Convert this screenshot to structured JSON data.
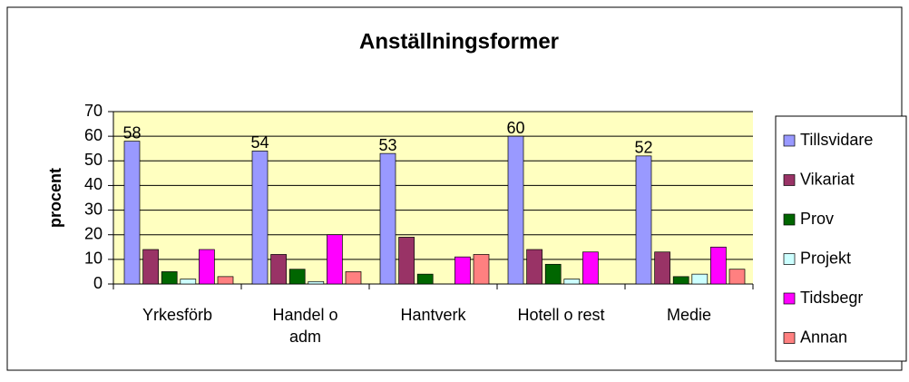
{
  "chart_data": {
    "type": "bar",
    "title": "Anställningsformer",
    "y_label": "procent",
    "categories": [
      "Yrkesförb",
      "Handel o adm",
      "Hantverk",
      "Hotell o rest",
      "Medie"
    ],
    "series": [
      {
        "name": "Tillsvidare",
        "color": "#9999ff",
        "values": [
          58,
          54,
          53,
          60,
          52
        ],
        "data_labels": true
      },
      {
        "name": "Vikariat",
        "color": "#993366",
        "values": [
          14,
          12,
          19,
          14,
          13
        ]
      },
      {
        "name": "Prov",
        "color": "#006600",
        "values": [
          5,
          6,
          4,
          8,
          3
        ]
      },
      {
        "name": "Projekt",
        "color": "#ccffff",
        "values": [
          2,
          1,
          0,
          2,
          4
        ]
      },
      {
        "name": "Tidsbegr",
        "color": "#ff00ff",
        "values": [
          14,
          20,
          11,
          13,
          15
        ]
      },
      {
        "name": "Annan",
        "color": "#ff8080",
        "values": [
          3,
          5,
          12,
          0,
          6
        ]
      }
    ],
    "ylim": [
      0,
      70
    ],
    "yticks": [
      0,
      10,
      20,
      30,
      40,
      50,
      60,
      70
    ],
    "grid": true,
    "legend": "right"
  }
}
